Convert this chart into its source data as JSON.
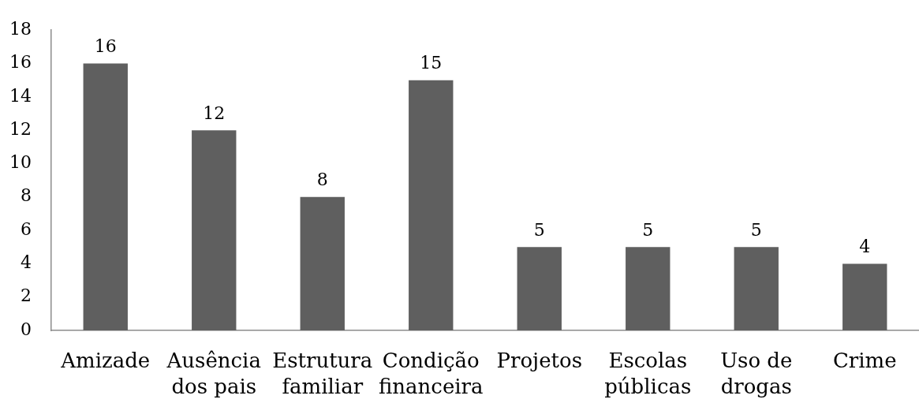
{
  "chart_data": {
    "type": "bar",
    "categories": [
      "Amizade",
      "Ausência dos pais",
      "Estrutura familiar",
      "Condição financeira",
      "Projetos",
      "Escolas públicas",
      "Uso de drogas",
      "Crime"
    ],
    "values": [
      16,
      12,
      8,
      15,
      5,
      5,
      5,
      4
    ],
    "color": "#5f5f5f",
    "ylim": [
      0,
      18
    ],
    "yticks": [
      0,
      2,
      4,
      6,
      8,
      10,
      12,
      14,
      16,
      18
    ],
    "grid": false,
    "data_labels": true
  }
}
